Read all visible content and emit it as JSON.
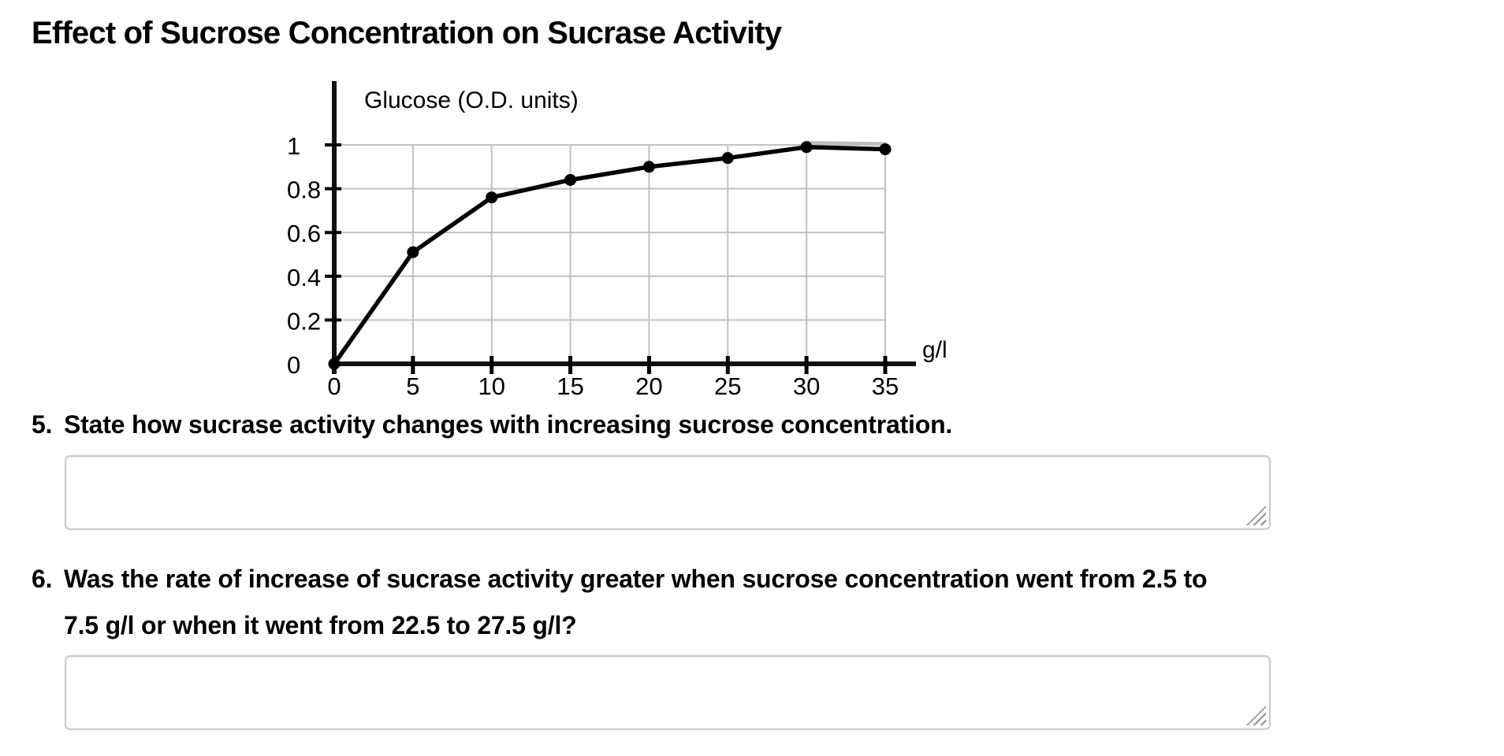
{
  "title": "Effect of Sucrose Concentration on Sucrase Activity",
  "chart_data": {
    "type": "line",
    "ylabel": "Glucose (O.D. units)",
    "xlabel": "g/l",
    "x": [
      0,
      5,
      10,
      15,
      20,
      25,
      30,
      35
    ],
    "y": [
      0,
      0.51,
      0.76,
      0.84,
      0.9,
      0.94,
      0.99,
      0.98
    ],
    "x_ticks": [
      0,
      5,
      10,
      15,
      20,
      25,
      30,
      35
    ],
    "y_ticks_labels": [
      "0",
      "0.2",
      "0.4",
      "0.6",
      "0.8",
      "1"
    ],
    "y_ticks": [
      0,
      0.2,
      0.4,
      0.6,
      0.8,
      1
    ],
    "xlim": [
      0,
      35
    ],
    "ylim": [
      0,
      1
    ],
    "grid": true,
    "legend": "none",
    "line_color": "#000000",
    "marker": "circle",
    "marker_color": "#000000",
    "grid_color": "#c0c0c0",
    "axis_color": "#111111",
    "ghost_segment": {
      "x": [
        30,
        35
      ],
      "y": [
        1.0,
        0.995
      ],
      "color": "#bdbdbd"
    }
  },
  "questions": [
    {
      "number": "5.",
      "lines": [
        "State how sucrase activity changes with increasing sucrose concentration."
      ],
      "answer_value": ""
    },
    {
      "number": "6.",
      "lines": [
        "Was the rate of increase of sucrase activity greater when sucrose concentration went from 2.5 to",
        "7.5 g/l or when it went from 22.5 to 27.5 g/l?"
      ],
      "answer_value": ""
    }
  ]
}
